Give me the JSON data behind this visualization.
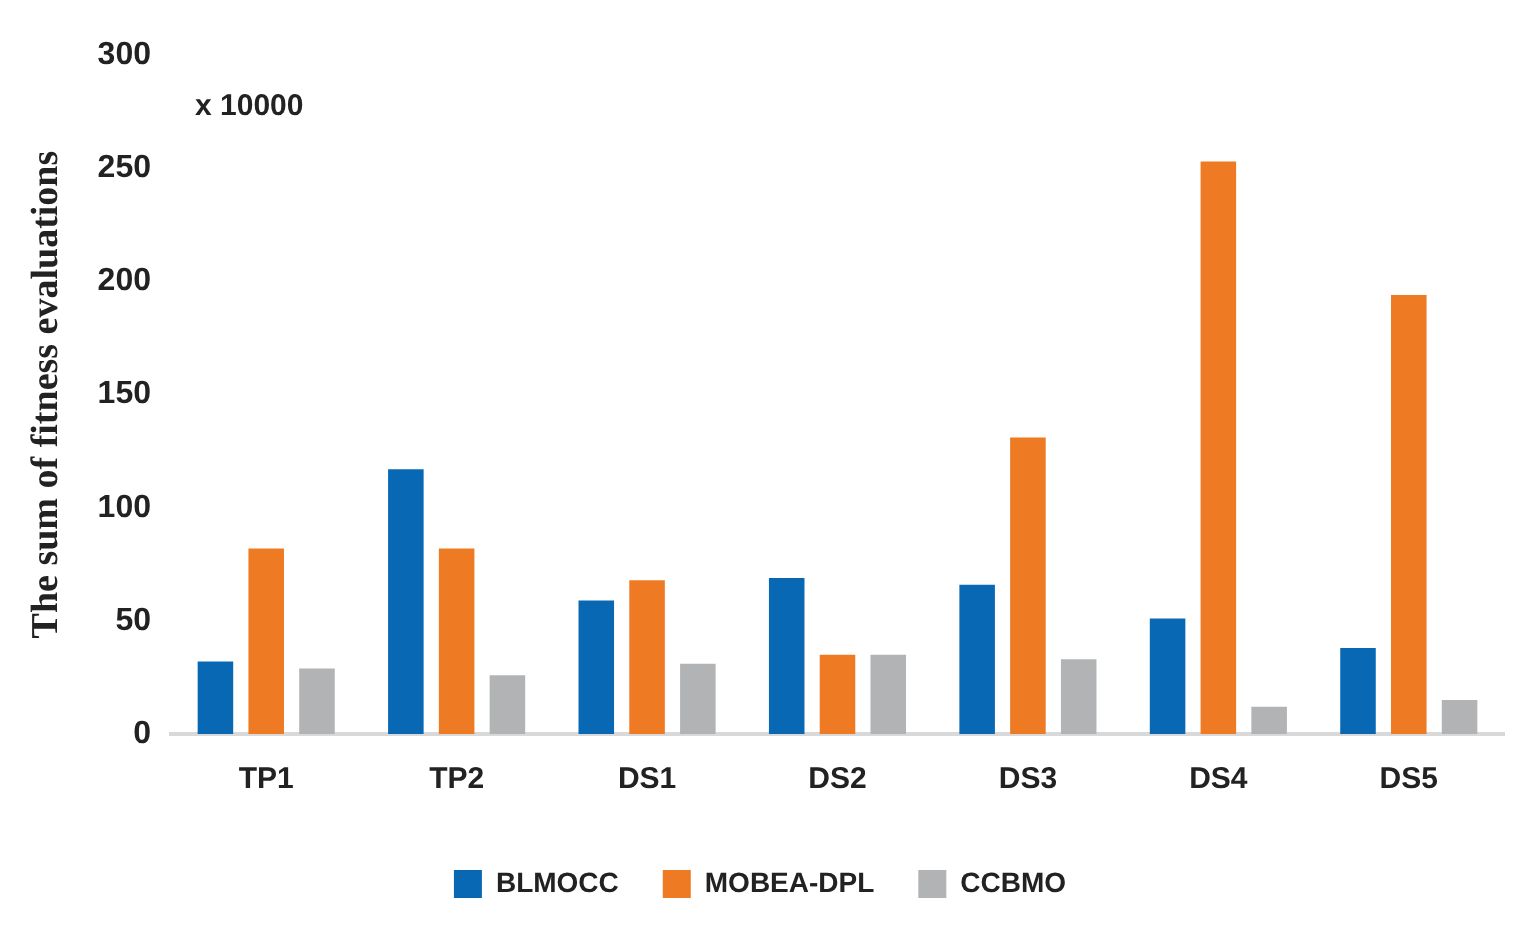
{
  "chart_data": {
    "type": "bar",
    "ylabel": "The sum of fitness evaluations",
    "annotations": [
      "x 10000"
    ],
    "categories": [
      "TP1",
      "TP2",
      "DS1",
      "DS2",
      "DS3",
      "DS4",
      "DS5"
    ],
    "series": [
      {
        "name": "BLMOCC",
        "color": "#0868b4",
        "values": [
          32,
          117,
          59,
          69,
          66,
          51,
          38
        ]
      },
      {
        "name": "MOBEA-DPL",
        "color": "#ee7a24",
        "values": [
          82,
          82,
          68,
          35,
          131,
          253,
          194
        ]
      },
      {
        "name": "CCBMO",
        "color": "#b2b3b5",
        "values": [
          29,
          26,
          31,
          35,
          33,
          12,
          15
        ]
      }
    ],
    "ylim": [
      0,
      300
    ],
    "yticks": [
      0,
      50,
      100,
      150,
      200,
      250,
      300
    ],
    "grid": false,
    "legend": "bottom"
  }
}
